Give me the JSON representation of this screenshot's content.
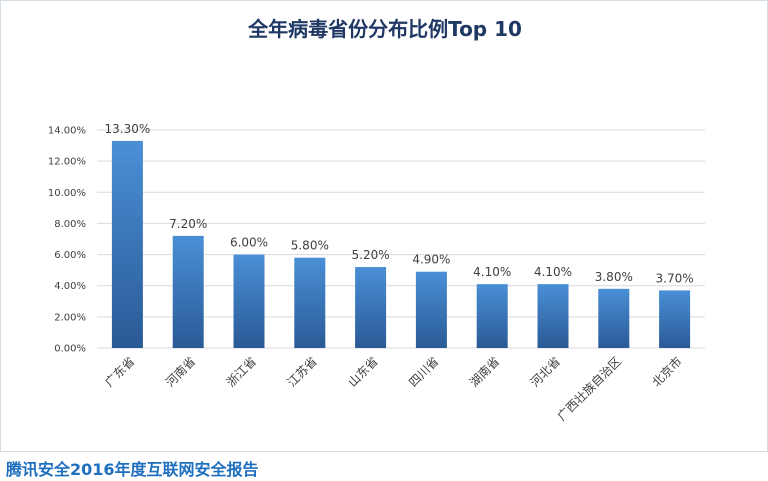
{
  "chart_data": {
    "type": "bar",
    "title": "全年病毒省份分布比例Top 10",
    "categories": [
      "广东省",
      "河南省",
      "浙江省",
      "江苏省",
      "山东省",
      "四川省",
      "湖南省",
      "河北省",
      "广西壮族自治区",
      "北京市"
    ],
    "values": [
      13.3,
      7.2,
      6.0,
      5.8,
      5.2,
      4.9,
      4.1,
      4.1,
      3.8,
      3.7
    ],
    "value_labels": [
      "13.30%",
      "7.20%",
      "6.00%",
      "5.80%",
      "5.20%",
      "4.90%",
      "4.10%",
      "4.10%",
      "3.80%",
      "3.70%"
    ],
    "y_ticks": [
      "0.00%",
      "2.00%",
      "4.00%",
      "6.00%",
      "8.00%",
      "10.00%",
      "12.00%",
      "14.00%"
    ],
    "ylim": [
      0,
      14
    ],
    "y_unit": "%",
    "xlabel": "",
    "ylabel": "",
    "grid": true,
    "legend": false,
    "colors": {
      "bar_top": "#4a8fd6",
      "bar_bottom": "#2a5a96",
      "grid": "#d9d9d9",
      "text": "#404040"
    }
  },
  "footer": {
    "source_text": "腾讯安全2016年度互联网安全报告"
  }
}
